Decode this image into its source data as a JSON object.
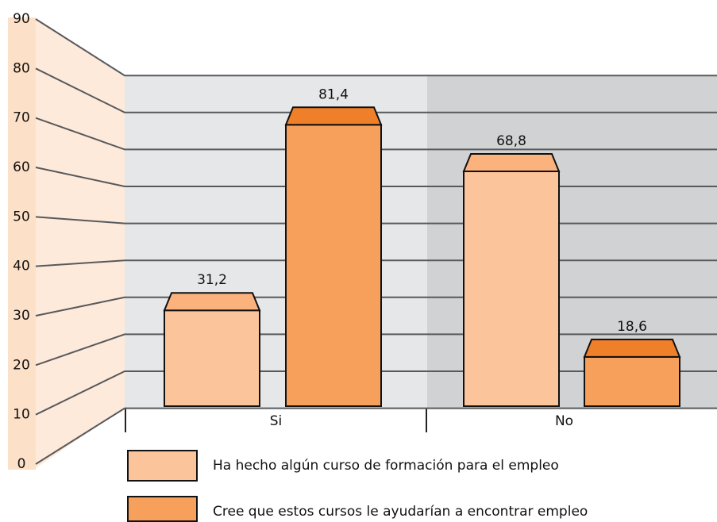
{
  "chart_data": {
    "type": "bar",
    "categories": [
      "Si",
      "No"
    ],
    "series": [
      {
        "name": "Ha hecho algún curso de formación para el empleo",
        "color": "#fbc49a",
        "top_color": "#fbb27c",
        "values": [
          31.2,
          68.8
        ],
        "value_labels": [
          "31,2",
          "68,8"
        ]
      },
      {
        "name": "Cree que estos cursos le ayudarían a encontrar empleo",
        "color": "#f7a05c",
        "top_color": "#f07f2a",
        "values": [
          81.4,
          18.6
        ],
        "value_labels": [
          "81,4",
          "18,6"
        ]
      }
    ],
    "ylim": [
      0,
      90
    ],
    "yticks": [
      0,
      10,
      20,
      30,
      40,
      50,
      60,
      70,
      80,
      90
    ],
    "grid": true
  }
}
